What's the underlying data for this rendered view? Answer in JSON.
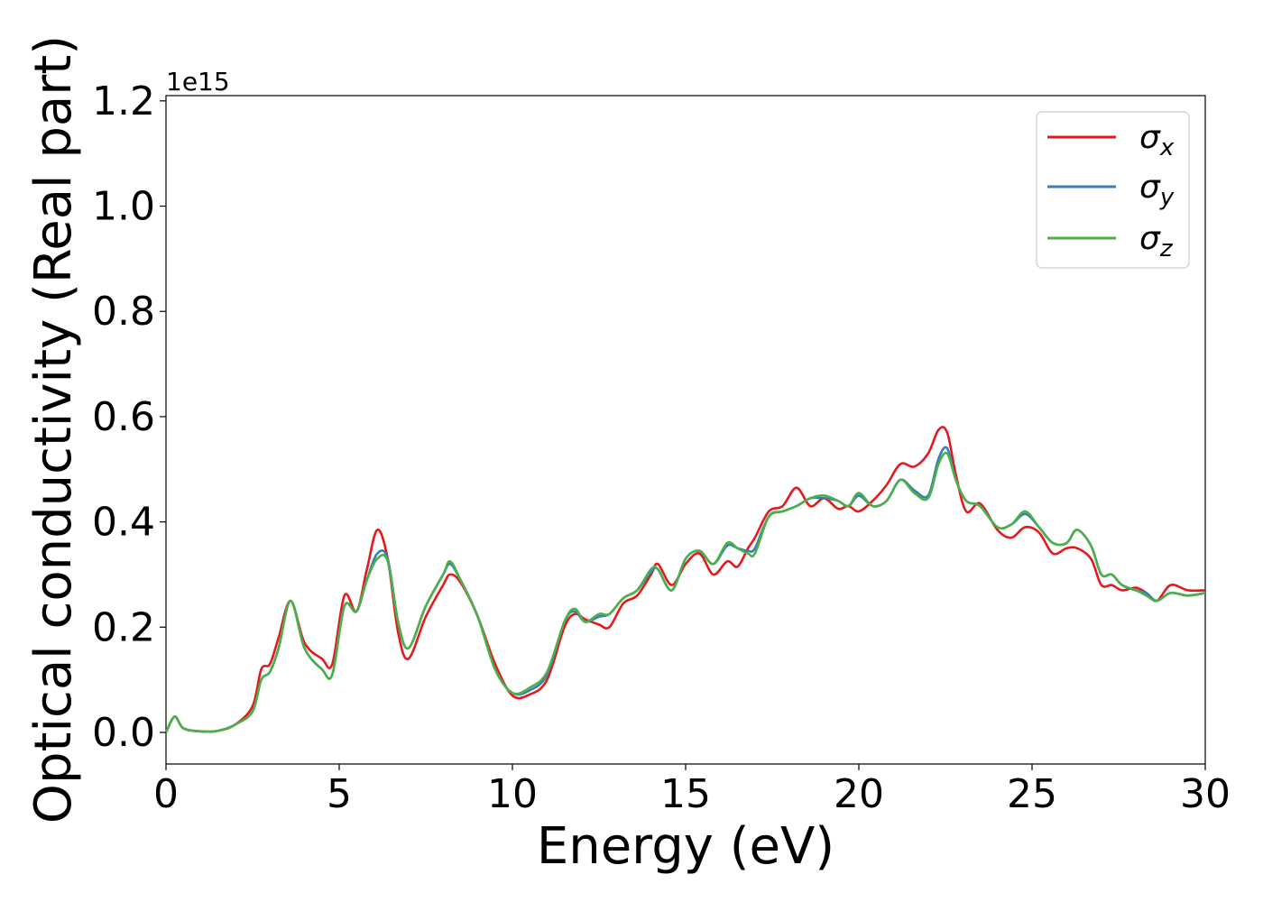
{
  "chart_data": {
    "type": "line",
    "xlabel": "Energy (eV)",
    "ylabel": "Optical conductivity (Real part)",
    "y_offset_label": "1e15",
    "xlim": [
      0,
      30
    ],
    "ylim": [
      -0.06,
      1.21
    ],
    "x_ticks": [
      0,
      5,
      10,
      15,
      20,
      25,
      30
    ],
    "x_tick_labels": [
      "0",
      "5",
      "10",
      "15",
      "20",
      "25",
      "30"
    ],
    "y_ticks": [
      0.0,
      0.2,
      0.4,
      0.6,
      0.8,
      1.0,
      1.2
    ],
    "y_tick_labels": [
      "0.0",
      "0.2",
      "0.4",
      "0.6",
      "0.8",
      "1.0",
      "1.2"
    ],
    "grid": false,
    "legend_position": "top-right",
    "x": [
      0,
      0.25,
      0.5,
      1.0,
      1.5,
      2.0,
      2.5,
      2.75,
      3.0,
      3.25,
      3.6,
      4.0,
      4.5,
      4.8,
      5.15,
      5.5,
      5.8,
      6.1,
      6.4,
      6.7,
      7.0,
      7.5,
      8.0,
      8.2,
      8.5,
      9.0,
      9.5,
      10.0,
      10.5,
      11.0,
      11.5,
      11.8,
      12.1,
      12.5,
      12.8,
      13.2,
      13.6,
      14.0,
      14.2,
      14.6,
      15.0,
      15.4,
      15.8,
      16.2,
      16.5,
      16.8,
      17.0,
      17.4,
      17.8,
      18.2,
      18.6,
      19.0,
      19.4,
      19.7,
      20.0,
      20.4,
      20.8,
      21.2,
      21.6,
      22.0,
      22.3,
      22.55,
      22.8,
      23.1,
      23.5,
      24.0,
      24.4,
      24.8,
      25.2,
      25.6,
      26.0,
      26.3,
      26.7,
      27.0,
      27.3,
      27.6,
      28.0,
      28.3,
      28.6,
      29.0,
      29.5,
      30.0
    ],
    "series": [
      {
        "name": "σx",
        "color": "#e41a1c",
        "values": [
          0.0,
          0.03,
          0.008,
          0.002,
          0.003,
          0.015,
          0.05,
          0.12,
          0.13,
          0.18,
          0.25,
          0.17,
          0.14,
          0.13,
          0.26,
          0.23,
          0.31,
          0.385,
          0.33,
          0.19,
          0.14,
          0.22,
          0.28,
          0.3,
          0.285,
          0.22,
          0.13,
          0.07,
          0.072,
          0.1,
          0.2,
          0.225,
          0.215,
          0.205,
          0.2,
          0.245,
          0.26,
          0.3,
          0.32,
          0.28,
          0.32,
          0.34,
          0.3,
          0.325,
          0.315,
          0.35,
          0.37,
          0.42,
          0.43,
          0.465,
          0.43,
          0.445,
          0.425,
          0.43,
          0.42,
          0.44,
          0.47,
          0.51,
          0.505,
          0.53,
          0.575,
          0.57,
          0.49,
          0.42,
          0.435,
          0.385,
          0.37,
          0.39,
          0.38,
          0.34,
          0.35,
          0.35,
          0.33,
          0.28,
          0.28,
          0.27,
          0.275,
          0.265,
          0.25,
          0.28,
          0.27,
          0.27
        ]
      },
      {
        "name": "σy",
        "color": "#377eb8",
        "values": [
          0.0,
          0.03,
          0.008,
          0.002,
          0.003,
          0.015,
          0.04,
          0.1,
          0.115,
          0.16,
          0.25,
          0.16,
          0.12,
          0.11,
          0.24,
          0.23,
          0.29,
          0.34,
          0.33,
          0.21,
          0.16,
          0.24,
          0.3,
          0.32,
          0.29,
          0.22,
          0.12,
          0.075,
          0.08,
          0.11,
          0.21,
          0.23,
          0.21,
          0.22,
          0.225,
          0.255,
          0.27,
          0.305,
          0.31,
          0.27,
          0.33,
          0.345,
          0.32,
          0.355,
          0.35,
          0.345,
          0.35,
          0.41,
          0.42,
          0.43,
          0.445,
          0.445,
          0.44,
          0.43,
          0.45,
          0.43,
          0.44,
          0.48,
          0.46,
          0.45,
          0.52,
          0.54,
          0.48,
          0.44,
          0.43,
          0.39,
          0.395,
          0.415,
          0.39,
          0.36,
          0.36,
          0.385,
          0.355,
          0.3,
          0.3,
          0.28,
          0.27,
          0.265,
          0.25,
          0.265,
          0.26,
          0.265
        ]
      },
      {
        "name": "σz",
        "color": "#4daf4a",
        "values": [
          0.0,
          0.03,
          0.008,
          0.002,
          0.003,
          0.015,
          0.04,
          0.1,
          0.115,
          0.16,
          0.25,
          0.16,
          0.12,
          0.11,
          0.24,
          0.23,
          0.29,
          0.33,
          0.325,
          0.21,
          0.16,
          0.24,
          0.3,
          0.325,
          0.29,
          0.22,
          0.12,
          0.075,
          0.085,
          0.115,
          0.21,
          0.235,
          0.21,
          0.225,
          0.225,
          0.255,
          0.27,
          0.31,
          0.31,
          0.27,
          0.33,
          0.345,
          0.32,
          0.36,
          0.35,
          0.34,
          0.34,
          0.41,
          0.42,
          0.43,
          0.445,
          0.45,
          0.44,
          0.43,
          0.455,
          0.43,
          0.44,
          0.48,
          0.455,
          0.445,
          0.51,
          0.53,
          0.48,
          0.44,
          0.43,
          0.39,
          0.395,
          0.42,
          0.39,
          0.36,
          0.36,
          0.385,
          0.355,
          0.3,
          0.3,
          0.28,
          0.27,
          0.26,
          0.25,
          0.265,
          0.26,
          0.265
        ]
      }
    ]
  },
  "legend": [
    {
      "symbol": "σ",
      "sub": "x",
      "color": "#e41a1c"
    },
    {
      "symbol": "σ",
      "sub": "y",
      "color": "#377eb8"
    },
    {
      "symbol": "σ",
      "sub": "z",
      "color": "#4daf4a"
    }
  ]
}
